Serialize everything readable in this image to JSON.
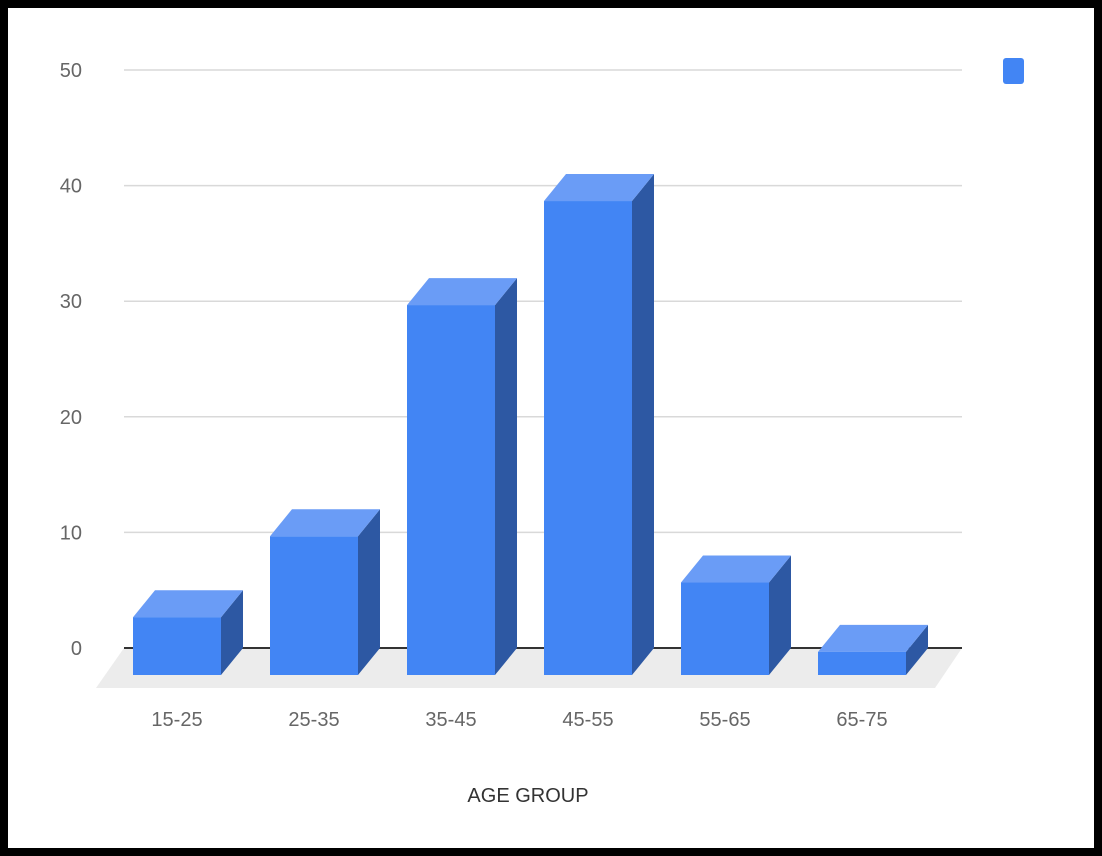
{
  "chart_data": {
    "type": "bar",
    "style": "3d",
    "categories": [
      "15-25",
      "25-35",
      "35-45",
      "45-55",
      "55-65",
      "65-75"
    ],
    "values": [
      5,
      12,
      32,
      41,
      8,
      2
    ],
    "title": "",
    "xlabel": "AGE GROUP",
    "ylabel": "",
    "ylim": [
      0,
      50
    ],
    "yticks": [
      0,
      10,
      20,
      30,
      40,
      50
    ],
    "grid": true,
    "legend": "top-right",
    "series": [
      {
        "values": [
          5,
          12,
          32,
          41,
          8,
          2
        ]
      }
    ],
    "colors": {
      "bar_front": "#4285f4",
      "bar_side": "#2d58a3",
      "bar_top": "#6a9cf6",
      "grid": "#d9d9d9",
      "baseline": "#333333",
      "floor": "#ececec"
    }
  }
}
